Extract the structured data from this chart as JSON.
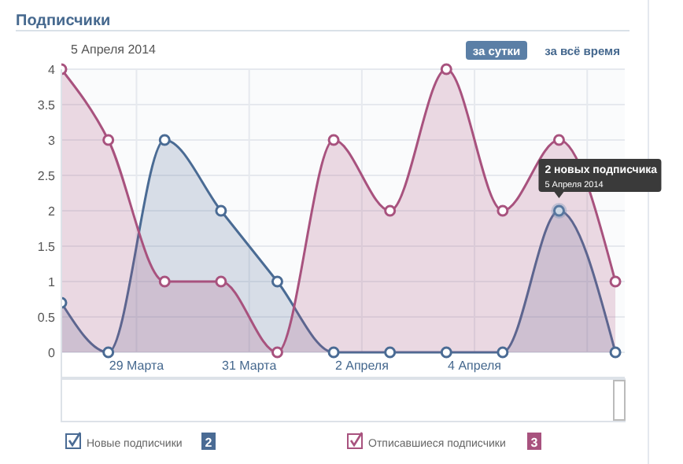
{
  "chart_data": {
    "type": "area",
    "title": "Подписчики",
    "subtitle": "5 Апреля 2014",
    "x": [
      "2014-03-27T16:00",
      "2014-03-28T12:00",
      "2014-03-29T12:00",
      "2014-03-30T12:00",
      "2014-03-31T12:00",
      "2014-04-01T12:00",
      "2014-04-02T12:00",
      "2014-04-03T12:00",
      "2014-04-04T12:00",
      "2014-04-05T12:00",
      "2014-04-06T12:00"
    ],
    "series": [
      {
        "name": "Новые подписчики",
        "color": "#4a6b94",
        "values": [
          0.7,
          0,
          3,
          2,
          1,
          0,
          0,
          0,
          0,
          2,
          0
        ]
      },
      {
        "name": "Отписавшиеся подписчики",
        "color": "#a8527e",
        "values": [
          4,
          3,
          1,
          1,
          0,
          3,
          2,
          4,
          2,
          3,
          1
        ]
      }
    ],
    "xlim": [
      "2014-03-27T16:00",
      "2014-04-06T16:00"
    ],
    "xticks": [
      {
        "value": "2014-03-29",
        "label": "29 Марта"
      },
      {
        "value": "2014-03-31",
        "label": "31 Марта"
      },
      {
        "value": "2014-04-02",
        "label": "2 Апреля"
      },
      {
        "value": "2014-04-04",
        "label": "4 Апреля"
      },
      {
        "value": "2014-04-06",
        "label": null
      }
    ],
    "ylim": [
      0,
      4
    ],
    "yticks": [
      0,
      0.5,
      1,
      1.5,
      2,
      2.5,
      3,
      3.5,
      4
    ],
    "grid": true,
    "marker": "circle",
    "legend": "bottom",
    "annotations": [
      "за сутки",
      "за всё время",
      {
        "text": "2 новых подписчика\n5 Апреля 2014",
        "x": "2014-04-05T12:00",
        "y": 2
      },
      "2",
      "3"
    ]
  }
}
